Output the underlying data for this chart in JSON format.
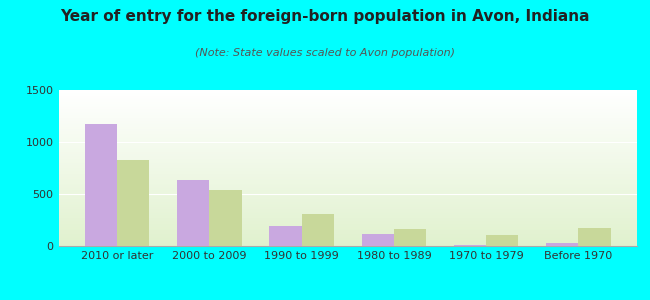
{
  "title": "Year of entry for the foreign-born population in Avon, Indiana",
  "subtitle": "(Note: State values scaled to Avon population)",
  "categories": [
    "2010 or later",
    "2000 to 2009",
    "1990 to 1999",
    "1980 to 1989",
    "1970 to 1979",
    "Before 1970"
  ],
  "avon_values": [
    1170,
    630,
    195,
    120,
    10,
    30
  ],
  "indiana_values": [
    830,
    540,
    305,
    165,
    110,
    175
  ],
  "avon_color": "#c9a8e0",
  "indiana_color": "#c8d89a",
  "ylim": [
    0,
    1500
  ],
  "yticks": [
    0,
    500,
    1000,
    1500
  ],
  "background_color": "#00ffff",
  "bar_width": 0.35,
  "title_fontsize": 11,
  "subtitle_fontsize": 8,
  "tick_fontsize": 8,
  "legend_fontsize": 9
}
